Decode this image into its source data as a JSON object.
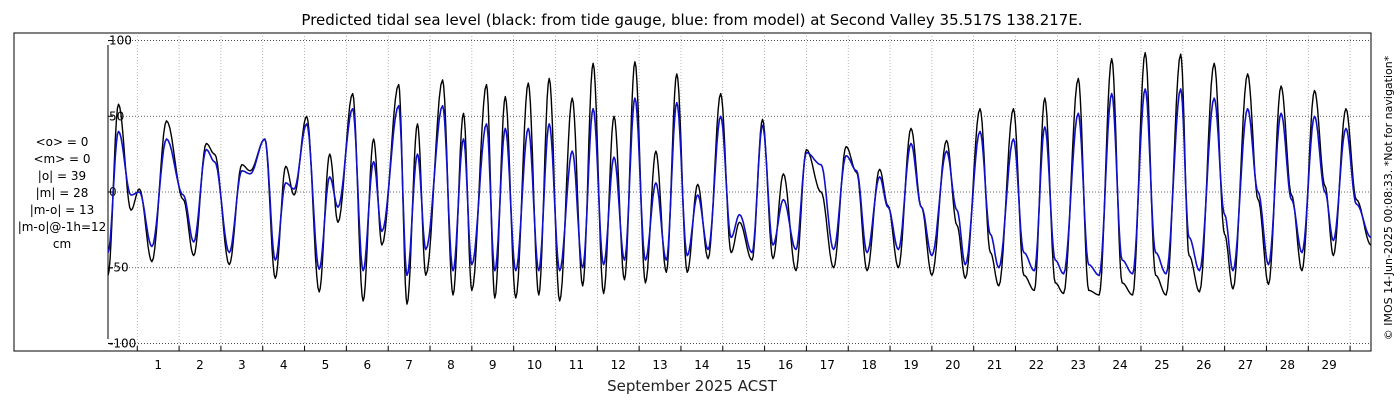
{
  "chart_data": {
    "type": "line",
    "title": "Predicted tidal sea level (black: from tide gauge, blue: from model) at Second Valley 35.517S 138.217E.",
    "xlabel": "September 2025 ACST",
    "ylabel": "",
    "x_range_days": [
      0.3,
      30.5
    ],
    "ylim": [
      -105,
      105
    ],
    "y_ticks": [
      100,
      50,
      0,
      -50,
      -100
    ],
    "y_tick_labels": [
      "100",
      "50",
      "0",
      "-50",
      "-100"
    ],
    "x_ticks": [
      1,
      2,
      3,
      4,
      5,
      6,
      7,
      8,
      9,
      10,
      11,
      12,
      13,
      14,
      15,
      16,
      17,
      18,
      19,
      20,
      21,
      22,
      23,
      24,
      25,
      26,
      27,
      28,
      29
    ],
    "grid": true,
    "stats": [
      "<o> = 0",
      "<m> = 0",
      "|o| = 39",
      "|m| = 28",
      "|m-o| = 13",
      "|m-o|@-1h=12",
      "cm"
    ],
    "copyright": "© IMOS 14-Jun-2025 00:08:33. *Not for navigation*",
    "series": [
      {
        "name": "tide gauge",
        "color": "#000000",
        "description": "semi-diurnal tide, approximate high / low levels per tide in cm",
        "points": [
          [
            0.3,
            -55
          ],
          [
            0.55,
            58
          ],
          [
            0.85,
            -12
          ],
          [
            1.05,
            2
          ],
          [
            1.35,
            -46
          ],
          [
            1.7,
            47
          ],
          [
            2.1,
            -5
          ],
          [
            2.35,
            -42
          ],
          [
            2.65,
            32
          ],
          [
            2.85,
            25
          ],
          [
            3.2,
            -48
          ],
          [
            3.5,
            18
          ],
          [
            3.7,
            14
          ],
          [
            4.05,
            35
          ],
          [
            4.3,
            -57
          ],
          [
            4.55,
            17
          ],
          [
            4.75,
            -2
          ],
          [
            5.05,
            50
          ],
          [
            5.35,
            -66
          ],
          [
            5.6,
            25
          ],
          [
            5.8,
            -20
          ],
          [
            6.15,
            65
          ],
          [
            6.4,
            -72
          ],
          [
            6.65,
            35
          ],
          [
            6.85,
            -35
          ],
          [
            7.25,
            71
          ],
          [
            7.45,
            -74
          ],
          [
            7.7,
            45
          ],
          [
            7.9,
            -55
          ],
          [
            8.3,
            74
          ],
          [
            8.55,
            -68
          ],
          [
            8.8,
            52
          ],
          [
            9.0,
            -65
          ],
          [
            9.35,
            71
          ],
          [
            9.55,
            -70
          ],
          [
            9.8,
            63
          ],
          [
            10.05,
            -70
          ],
          [
            10.35,
            72
          ],
          [
            10.6,
            -68
          ],
          [
            10.85,
            75
          ],
          [
            11.1,
            -72
          ],
          [
            11.4,
            62
          ],
          [
            11.65,
            -62
          ],
          [
            11.9,
            85
          ],
          [
            12.15,
            -67
          ],
          [
            12.4,
            50
          ],
          [
            12.65,
            -58
          ],
          [
            12.9,
            86
          ],
          [
            13.15,
            -60
          ],
          [
            13.4,
            27
          ],
          [
            13.65,
            -53
          ],
          [
            13.9,
            78
          ],
          [
            14.15,
            -53
          ],
          [
            14.4,
            5
          ],
          [
            14.65,
            -44
          ],
          [
            14.95,
            65
          ],
          [
            15.2,
            -40
          ],
          [
            15.4,
            -20
          ],
          [
            15.7,
            -45
          ],
          [
            15.95,
            48
          ],
          [
            16.2,
            -44
          ],
          [
            16.45,
            12
          ],
          [
            16.75,
            -52
          ],
          [
            17.0,
            28
          ],
          [
            17.35,
            0
          ],
          [
            17.65,
            -50
          ],
          [
            17.95,
            30
          ],
          [
            18.2,
            13
          ],
          [
            18.45,
            -52
          ],
          [
            18.75,
            15
          ],
          [
            18.95,
            -9
          ],
          [
            19.2,
            -50
          ],
          [
            19.5,
            42
          ],
          [
            19.75,
            -10
          ],
          [
            20.0,
            -55
          ],
          [
            20.35,
            34
          ],
          [
            20.6,
            -22
          ],
          [
            20.8,
            -57
          ],
          [
            21.15,
            55
          ],
          [
            21.4,
            -40
          ],
          [
            21.6,
            -62
          ],
          [
            21.95,
            55
          ],
          [
            22.2,
            -55
          ],
          [
            22.45,
            -65
          ],
          [
            22.7,
            62
          ],
          [
            22.95,
            -60
          ],
          [
            23.15,
            -67
          ],
          [
            23.5,
            75
          ],
          [
            23.75,
            -65
          ],
          [
            24.0,
            -68
          ],
          [
            24.3,
            88
          ],
          [
            24.55,
            -60
          ],
          [
            24.8,
            -68
          ],
          [
            25.1,
            92
          ],
          [
            25.35,
            -55
          ],
          [
            25.6,
            -68
          ],
          [
            25.95,
            91
          ],
          [
            26.15,
            -42
          ],
          [
            26.4,
            -66
          ],
          [
            26.75,
            85
          ],
          [
            27.0,
            -28
          ],
          [
            27.2,
            -64
          ],
          [
            27.55,
            78
          ],
          [
            27.8,
            -5
          ],
          [
            28.05,
            -61
          ],
          [
            28.35,
            70
          ],
          [
            28.6,
            -2
          ],
          [
            28.85,
            -52
          ],
          [
            29.15,
            67
          ],
          [
            29.4,
            4
          ],
          [
            29.6,
            -42
          ],
          [
            29.9,
            55
          ],
          [
            30.15,
            -5
          ],
          [
            30.5,
            -35
          ]
        ]
      },
      {
        "name": "model",
        "color": "#1010c8",
        "description": "modelled tide, approximate high / low levels per tide in cm",
        "points": [
          [
            0.3,
            -40
          ],
          [
            0.55,
            40
          ],
          [
            0.85,
            -2
          ],
          [
            1.05,
            0
          ],
          [
            1.35,
            -36
          ],
          [
            1.7,
            35
          ],
          [
            2.1,
            -2
          ],
          [
            2.35,
            -33
          ],
          [
            2.65,
            28
          ],
          [
            2.85,
            20
          ],
          [
            3.2,
            -40
          ],
          [
            3.5,
            14
          ],
          [
            3.7,
            12
          ],
          [
            4.05,
            35
          ],
          [
            4.3,
            -45
          ],
          [
            4.55,
            6
          ],
          [
            4.75,
            2
          ],
          [
            5.05,
            45
          ],
          [
            5.35,
            -51
          ],
          [
            5.6,
            10
          ],
          [
            5.8,
            -10
          ],
          [
            6.15,
            55
          ],
          [
            6.4,
            -52
          ],
          [
            6.65,
            20
          ],
          [
            6.85,
            -26
          ],
          [
            7.25,
            57
          ],
          [
            7.45,
            -55
          ],
          [
            7.7,
            25
          ],
          [
            7.9,
            -38
          ],
          [
            8.3,
            57
          ],
          [
            8.55,
            -52
          ],
          [
            8.8,
            35
          ],
          [
            9.0,
            -48
          ],
          [
            9.35,
            45
          ],
          [
            9.55,
            -52
          ],
          [
            9.8,
            42
          ],
          [
            10.05,
            -52
          ],
          [
            10.35,
            42
          ],
          [
            10.6,
            -52
          ],
          [
            10.85,
            45
          ],
          [
            11.1,
            -52
          ],
          [
            11.4,
            27
          ],
          [
            11.65,
            -50
          ],
          [
            11.9,
            55
          ],
          [
            12.15,
            -48
          ],
          [
            12.4,
            23
          ],
          [
            12.65,
            -45
          ],
          [
            12.9,
            62
          ],
          [
            13.15,
            -45
          ],
          [
            13.4,
            6
          ],
          [
            13.65,
            -45
          ],
          [
            13.9,
            59
          ],
          [
            14.15,
            -42
          ],
          [
            14.4,
            -2
          ],
          [
            14.65,
            -38
          ],
          [
            14.95,
            50
          ],
          [
            15.2,
            -30
          ],
          [
            15.4,
            -15
          ],
          [
            15.7,
            -40
          ],
          [
            15.95,
            44
          ],
          [
            16.2,
            -35
          ],
          [
            16.45,
            -5
          ],
          [
            16.75,
            -38
          ],
          [
            17.0,
            26
          ],
          [
            17.35,
            18
          ],
          [
            17.65,
            -38
          ],
          [
            17.95,
            24
          ],
          [
            18.2,
            14
          ],
          [
            18.45,
            -40
          ],
          [
            18.75,
            10
          ],
          [
            18.95,
            -10
          ],
          [
            19.2,
            -38
          ],
          [
            19.5,
            32
          ],
          [
            19.75,
            -10
          ],
          [
            20.0,
            -42
          ],
          [
            20.35,
            27
          ],
          [
            20.6,
            -12
          ],
          [
            20.8,
            -48
          ],
          [
            21.15,
            40
          ],
          [
            21.4,
            -28
          ],
          [
            21.6,
            -50
          ],
          [
            21.95,
            35
          ],
          [
            22.2,
            -40
          ],
          [
            22.45,
            -52
          ],
          [
            22.7,
            43
          ],
          [
            22.95,
            -45
          ],
          [
            23.15,
            -54
          ],
          [
            23.5,
            52
          ],
          [
            23.75,
            -48
          ],
          [
            24.0,
            -55
          ],
          [
            24.3,
            65
          ],
          [
            24.55,
            -45
          ],
          [
            24.8,
            -54
          ],
          [
            25.1,
            68
          ],
          [
            25.35,
            -40
          ],
          [
            25.6,
            -54
          ],
          [
            25.95,
            68
          ],
          [
            26.15,
            -30
          ],
          [
            26.4,
            -52
          ],
          [
            26.75,
            62
          ],
          [
            27.0,
            -15
          ],
          [
            27.2,
            -52
          ],
          [
            27.55,
            55
          ],
          [
            27.8,
            0
          ],
          [
            28.05,
            -48
          ],
          [
            28.35,
            52
          ],
          [
            28.6,
            -5
          ],
          [
            28.85,
            -40
          ],
          [
            29.15,
            50
          ],
          [
            29.4,
            0
          ],
          [
            29.6,
            -32
          ],
          [
            29.9,
            42
          ],
          [
            30.15,
            -8
          ],
          [
            30.5,
            -30
          ]
        ]
      }
    ]
  }
}
